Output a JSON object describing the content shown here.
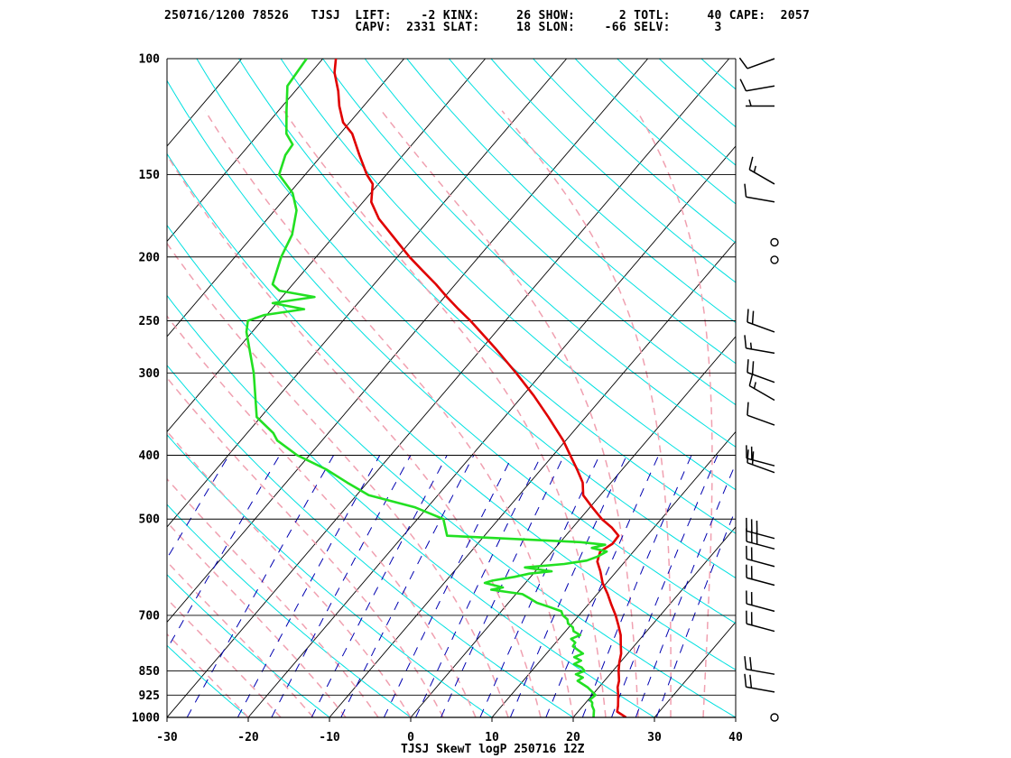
{
  "header": {
    "line1": "250716/1200 78526   TJSJ  LIFT:    -2 KINX:     26 SHOW:      2 TOTL:     40 CAPE:  2057",
    "line2": "                          CAPV:  2331 SLAT:     18 SLON:    -66 SELV:      3"
  },
  "footer": "TJSJ SkewT logP 250716 12Z",
  "colors": {
    "temperature": "#e00000",
    "dewpoint": "#22e022",
    "isotherm": "#000000",
    "isobar": "#000000",
    "dry_adiabat": "#00e0e0",
    "moist_adiabat": "#f0a0b0",
    "mixing_ratio": "#0000b0",
    "background": "#ffffff"
  },
  "chart_data": {
    "type": "line",
    "title": "TJSJ SkewT logP 250716 12Z",
    "station": "TJSJ",
    "station_id": "78526",
    "indices": {
      "LIFT": -2,
      "KINX": 26,
      "SHOW": 2,
      "TOTL": 40,
      "CAPE": 2057,
      "CAPV": 2331,
      "SLAT": 18,
      "SLON": -66,
      "SELV": 3
    },
    "xlabel": "",
    "ylabel": "",
    "x_ticks": [
      -30,
      -20,
      -10,
      0,
      10,
      20,
      30,
      40
    ],
    "y_ticks": [
      100,
      150,
      200,
      250,
      300,
      400,
      500,
      700,
      850,
      925,
      1000
    ],
    "xlim": [
      -30,
      40
    ],
    "ylim": [
      1000,
      100
    ],
    "y_scale": "log",
    "grid": true,
    "series": [
      {
        "role": "temperature",
        "points": [
          [
            1000,
            26.5
          ],
          [
            980,
            24.8
          ],
          [
            960,
            24.3
          ],
          [
            925,
            23.2
          ],
          [
            900,
            22.3
          ],
          [
            880,
            21.8
          ],
          [
            850,
            20.7
          ],
          [
            825,
            19.9
          ],
          [
            800,
            19.2
          ],
          [
            775,
            18.2
          ],
          [
            750,
            17.2
          ],
          [
            725,
            15.9
          ],
          [
            700,
            14.5
          ],
          [
            675,
            12.9
          ],
          [
            650,
            11.3
          ],
          [
            625,
            9.5
          ],
          [
            600,
            8.0
          ],
          [
            580,
            6.6
          ],
          [
            560,
            5.9
          ],
          [
            545,
            6.6
          ],
          [
            530,
            6.5
          ],
          [
            515,
            4.8
          ],
          [
            500,
            2.7
          ],
          [
            480,
            0.3
          ],
          [
            460,
            -2.1
          ],
          [
            440,
            -3.5
          ],
          [
            420,
            -5.6
          ],
          [
            400,
            -7.9
          ],
          [
            380,
            -10.3
          ],
          [
            350,
            -14.6
          ],
          [
            325,
            -18.6
          ],
          [
            300,
            -23.2
          ],
          [
            275,
            -28.4
          ],
          [
            250,
            -34.3
          ],
          [
            240,
            -37.0
          ],
          [
            230,
            -39.7
          ],
          [
            220,
            -42.4
          ],
          [
            210,
            -45.4
          ],
          [
            200,
            -48.5
          ],
          [
            190,
            -51.5
          ],
          [
            175,
            -56.3
          ],
          [
            165,
            -59.0
          ],
          [
            155,
            -60.7
          ],
          [
            150,
            -62.4
          ],
          [
            140,
            -65.4
          ],
          [
            130,
            -68.5
          ],
          [
            125,
            -70.8
          ],
          [
            118,
            -73.0
          ],
          [
            112,
            -74.7
          ],
          [
            105,
            -77.1
          ],
          [
            100,
            -78.4
          ]
        ]
      },
      {
        "role": "dewpoint",
        "points": [
          [
            1000,
            22.5
          ],
          [
            975,
            21.8
          ],
          [
            960,
            21.1
          ],
          [
            950,
            20.8
          ],
          [
            940,
            20.2
          ],
          [
            925,
            20.4
          ],
          [
            900,
            18.6
          ],
          [
            880,
            16.7
          ],
          [
            870,
            17.0
          ],
          [
            860,
            15.8
          ],
          [
            850,
            16.5
          ],
          [
            840,
            15.8
          ],
          [
            830,
            14.5
          ],
          [
            820,
            15.0
          ],
          [
            810,
            13.8
          ],
          [
            800,
            14.5
          ],
          [
            790,
            13.5
          ],
          [
            780,
            12.5
          ],
          [
            770,
            12.4
          ],
          [
            760,
            11.5
          ],
          [
            750,
            12.2
          ],
          [
            740,
            11.0
          ],
          [
            730,
            10.5
          ],
          [
            720,
            9.5
          ],
          [
            710,
            9.0
          ],
          [
            700,
            8.0
          ],
          [
            690,
            7.4
          ],
          [
            680,
            5.5
          ],
          [
            670,
            3.5
          ],
          [
            660,
            2.2
          ],
          [
            650,
            0.8
          ],
          [
            640,
            -3.5
          ],
          [
            635,
            -2.3
          ],
          [
            625,
            -5.0
          ],
          [
            620,
            -4.3
          ],
          [
            612,
            -2.0
          ],
          [
            605,
            -0.5
          ],
          [
            600,
            2.0
          ],
          [
            592,
            -1.7
          ],
          [
            585,
            2.8
          ],
          [
            578,
            5.2
          ],
          [
            570,
            6.1
          ],
          [
            560,
            6.7
          ],
          [
            553,
            4.5
          ],
          [
            547,
            5.8
          ],
          [
            542,
            2.5
          ],
          [
            530,
            -14.6
          ],
          [
            500,
            -16.8
          ],
          [
            480,
            -21.5
          ],
          [
            460,
            -28.5
          ],
          [
            440,
            -32.5
          ],
          [
            420,
            -36.5
          ],
          [
            400,
            -41.5
          ],
          [
            380,
            -45.5
          ],
          [
            370,
            -46.8
          ],
          [
            350,
            -50.5
          ],
          [
            300,
            -55.5
          ],
          [
            260,
            -60.7
          ],
          [
            250,
            -61.7
          ],
          [
            245,
            -60.3
          ],
          [
            240,
            -56.0
          ],
          [
            235,
            -60.5
          ],
          [
            230,
            -56.0
          ],
          [
            225,
            -61.0
          ],
          [
            220,
            -62.5
          ],
          [
            200,
            -64.3
          ],
          [
            185,
            -65.3
          ],
          [
            170,
            -67.3
          ],
          [
            160,
            -69.6
          ],
          [
            150,
            -73.2
          ],
          [
            140,
            -74.5
          ],
          [
            135,
            -74.7
          ],
          [
            130,
            -76.6
          ],
          [
            120,
            -79.0
          ],
          [
            110,
            -81.5
          ],
          [
            100,
            -82.0
          ]
        ]
      }
    ],
    "wind_barbs": [
      {
        "p": 100,
        "dir": 250,
        "spd": 10
      },
      {
        "p": 110,
        "dir": 260,
        "spd": 10
      },
      {
        "p": 118,
        "dir": 270,
        "spd": 5
      },
      {
        "p": 155,
        "dir": 300,
        "spd": 15
      },
      {
        "p": 165,
        "dir": 280,
        "spd": 10
      },
      {
        "p": 190,
        "dir": 200,
        "spd": 0
      },
      {
        "p": 202,
        "dir": 0,
        "spd": 0
      },
      {
        "p": 260,
        "dir": 290,
        "spd": 20
      },
      {
        "p": 280,
        "dir": 280,
        "spd": 15
      },
      {
        "p": 310,
        "dir": 290,
        "spd": 20
      },
      {
        "p": 330,
        "dir": 300,
        "spd": 15
      },
      {
        "p": 360,
        "dir": 290,
        "spd": 10
      },
      {
        "p": 415,
        "dir": 285,
        "spd": 20
      },
      {
        "p": 425,
        "dir": 290,
        "spd": 20
      },
      {
        "p": 535,
        "dir": 285,
        "spd": 30
      },
      {
        "p": 555,
        "dir": 285,
        "spd": 30
      },
      {
        "p": 590,
        "dir": 285,
        "spd": 20
      },
      {
        "p": 630,
        "dir": 285,
        "spd": 20
      },
      {
        "p": 690,
        "dir": 285,
        "spd": 20
      },
      {
        "p": 740,
        "dir": 285,
        "spd": 20
      },
      {
        "p": 860,
        "dir": 280,
        "spd": 20
      },
      {
        "p": 915,
        "dir": 280,
        "spd": 20
      },
      {
        "p": 1000,
        "dir": 0,
        "spd": 0
      }
    ]
  }
}
